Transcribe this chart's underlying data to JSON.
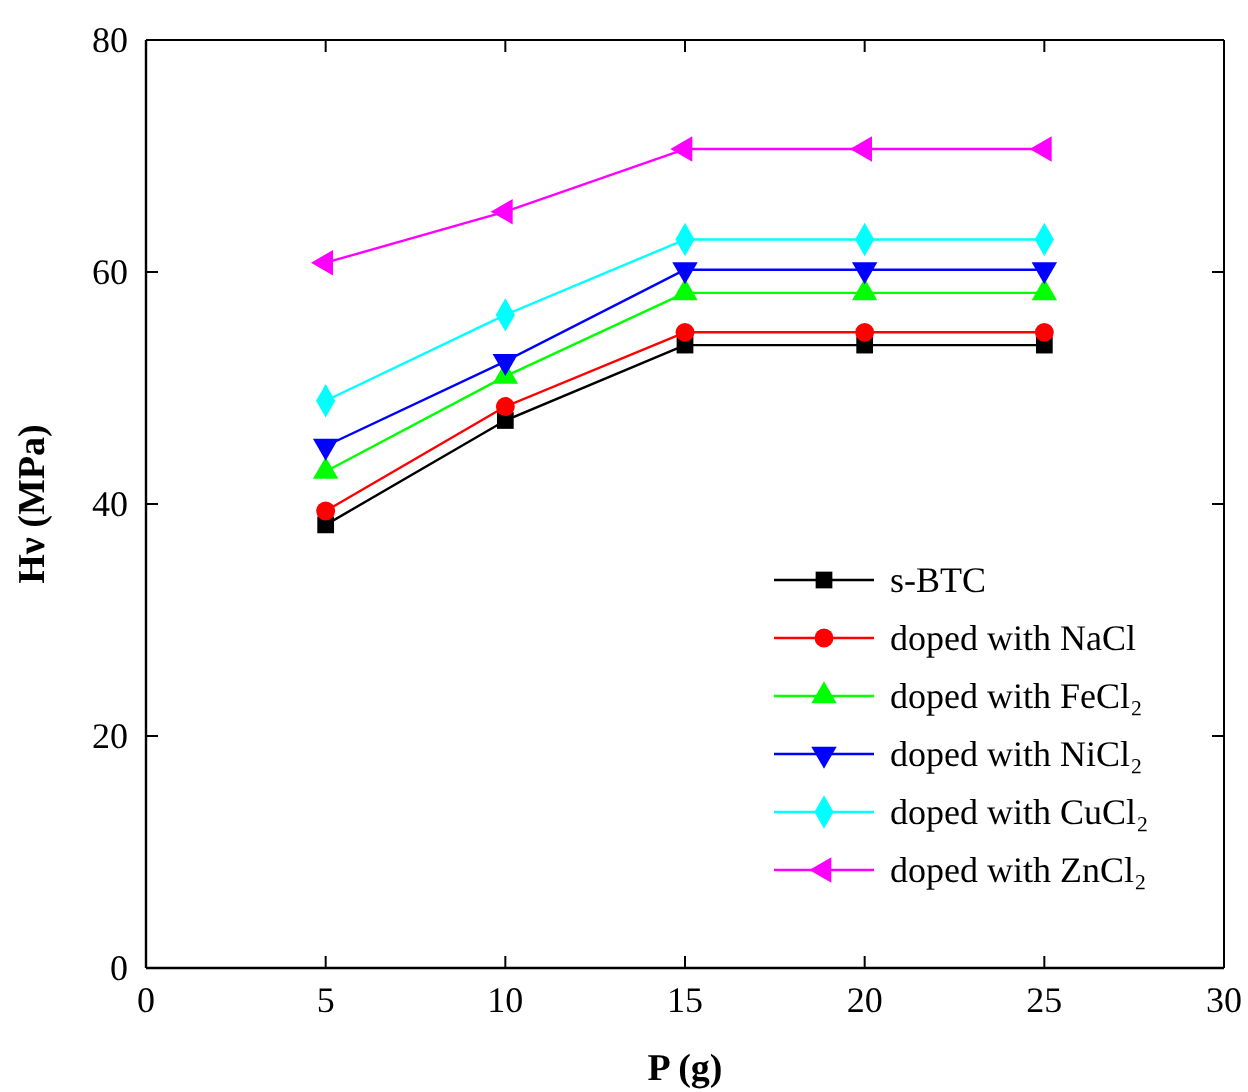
{
  "chart_data": {
    "type": "line",
    "xlabel": "P (g)",
    "ylabel": "Hν (MPa)",
    "x": [
      5,
      10,
      15,
      20,
      25
    ],
    "xlim": [
      0,
      30
    ],
    "xticks": [
      0,
      5,
      10,
      15,
      20,
      25,
      30
    ],
    "ylim": [
      0,
      80
    ],
    "yticks": [
      0,
      20,
      40,
      60,
      80
    ],
    "grid": false,
    "legend": "bottom right",
    "line_style": "solid",
    "series": [
      {
        "name": "s-BTC",
        "color": "#000000",
        "marker": "square",
        "values": [
          38.2,
          47.2,
          53.7,
          53.7,
          53.7
        ]
      },
      {
        "name": "doped with NaCl",
        "color": "#ff0000",
        "marker": "circle",
        "values": [
          39.4,
          48.4,
          54.8,
          54.8,
          54.8
        ]
      },
      {
        "name": "doped with FeCl₂",
        "color": "#00ff00",
        "marker": "triangle",
        "values": [
          42.8,
          51.0,
          58.2,
          58.2,
          58.2
        ]
      },
      {
        "name": "doped with NiCl₂",
        "color": "#0000ff",
        "marker": "triangle-down",
        "values": [
          45.0,
          52.3,
          60.2,
          60.2,
          60.2
        ]
      },
      {
        "name": "doped with CuCl₂",
        "color": "#00ffff",
        "marker": "diamond",
        "values": [
          48.9,
          56.3,
          62.8,
          62.8,
          62.8
        ]
      },
      {
        "name": "doped with ZnCl₂",
        "color": "#ff00ff",
        "marker": "triangle-left",
        "values": [
          60.8,
          65.2,
          70.6,
          70.6,
          70.6
        ]
      }
    ]
  }
}
